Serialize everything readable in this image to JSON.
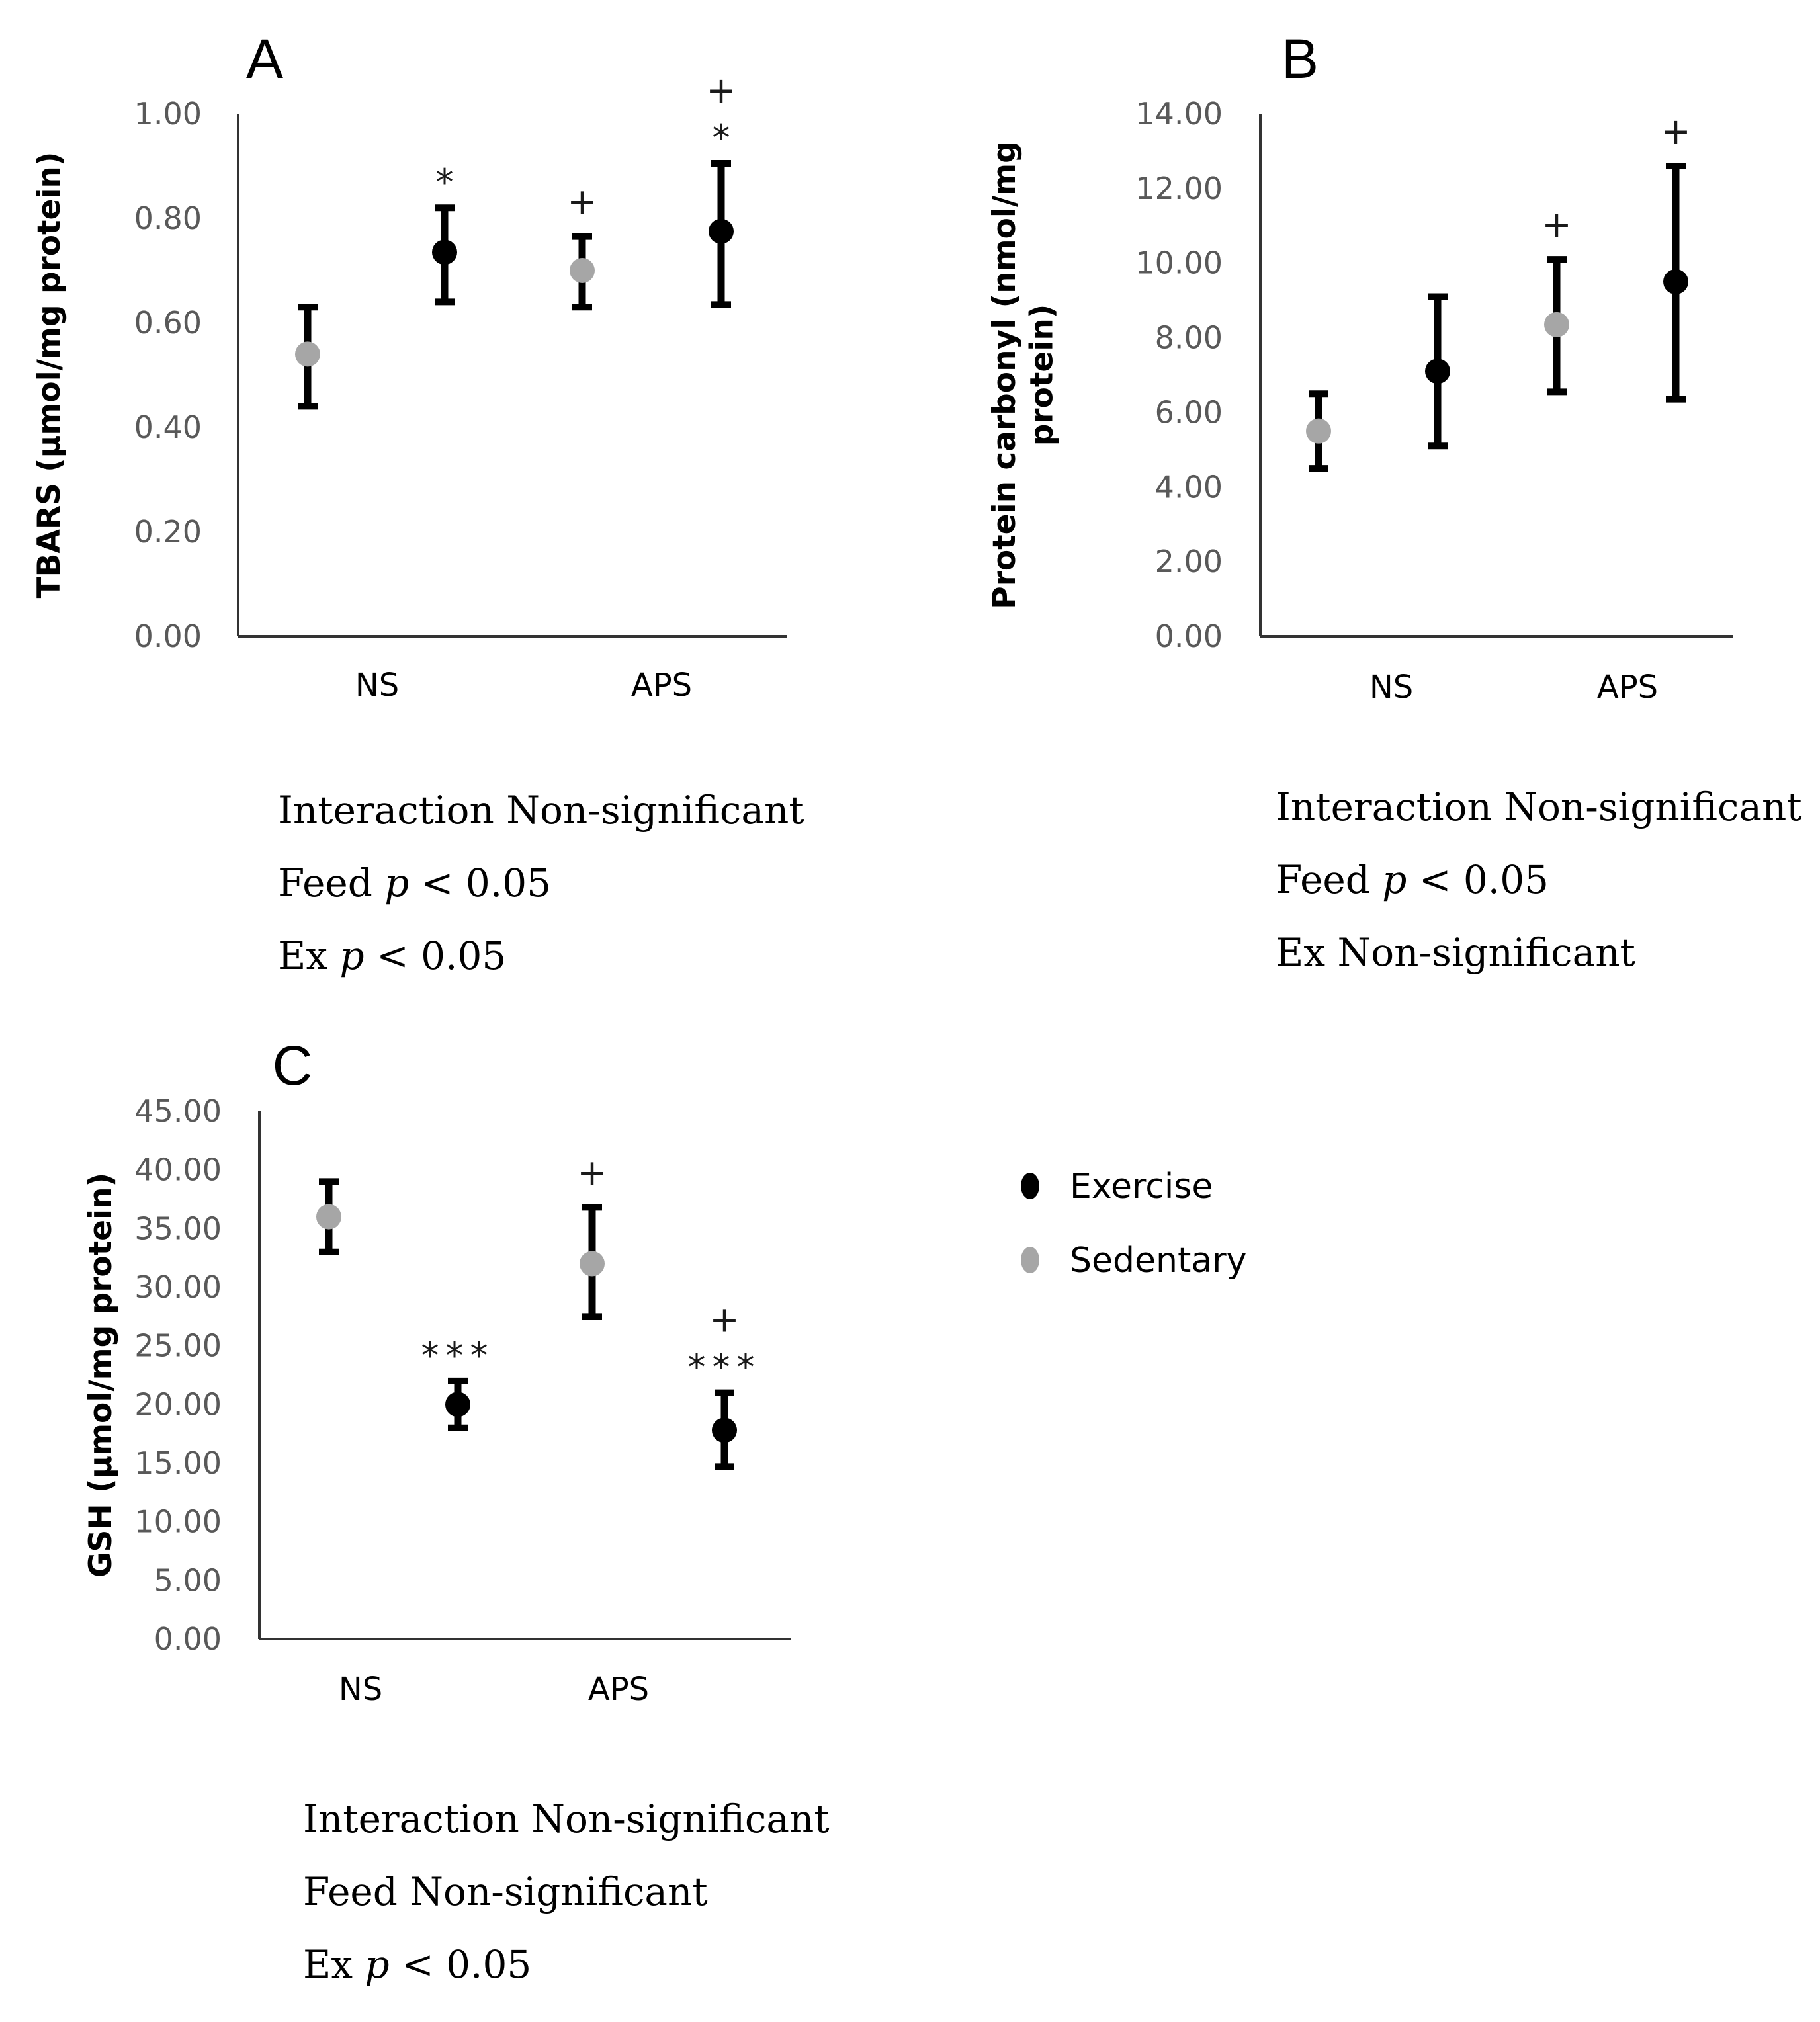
{
  "legend": [
    {
      "label": "Exercise",
      "color": "#000000"
    },
    {
      "label": "Sedentary",
      "color": "#a6a6a6"
    }
  ],
  "chart_data": [
    {
      "type": "scatter",
      "panel": "A",
      "ylabel": "TBARS (µmol/mg protein)",
      "ylim": [
        0,
        1
      ],
      "yticks": [
        0,
        0.2,
        0.4,
        0.6,
        0.8,
        1.0
      ],
      "ytick_labels": [
        "0.00",
        "0.20",
        "0.40",
        "0.60",
        "0.80",
        "1.00"
      ],
      "categories": [
        "NS",
        "APS"
      ],
      "series": [
        {
          "name": "Sedentary",
          "values": [
            0.54,
            0.7
          ],
          "err_low": [
            0.44,
            0.63
          ],
          "err_high": [
            0.63,
            0.765
          ],
          "marks": [
            "",
            "+"
          ]
        },
        {
          "name": "Exercise",
          "values": [
            0.735,
            0.775
          ],
          "err_low": [
            0.64,
            0.635
          ],
          "err_high": [
            0.82,
            0.905
          ],
          "marks": [
            "*",
            "+\n*"
          ]
        }
      ],
      "stats": [
        [
          "Interaction Non-significant"
        ],
        [
          "Feed ",
          "p",
          " < 0.05"
        ],
        [
          "Ex ",
          "p",
          " < 0.05"
        ]
      ]
    },
    {
      "type": "scatter",
      "panel": "B",
      "ylabel": "Protein carbonyl (nmol/mg protein)",
      "ylim": [
        0,
        14
      ],
      "yticks": [
        0,
        2,
        4,
        6,
        8,
        10,
        12,
        14
      ],
      "ytick_labels": [
        "0.00",
        "2.00",
        "4.00",
        "6.00",
        "8.00",
        "10.00",
        "12.00",
        "14.00"
      ],
      "categories": [
        "NS",
        "APS"
      ],
      "series": [
        {
          "name": "Sedentary",
          "values": [
            5.5,
            8.35
          ],
          "err_low": [
            4.5,
            6.55
          ],
          "err_high": [
            6.5,
            10.1
          ],
          "marks": [
            "",
            "+"
          ]
        },
        {
          "name": "Exercise",
          "values": [
            7.1,
            9.5
          ],
          "err_low": [
            5.1,
            6.35
          ],
          "err_high": [
            9.1,
            12.6
          ],
          "marks": [
            "",
            "+"
          ]
        }
      ],
      "stats": [
        [
          "Interaction Non-significant"
        ],
        [
          "Feed ",
          "p",
          " < 0.05"
        ],
        [
          "Ex Non-significant"
        ]
      ]
    },
    {
      "type": "scatter",
      "panel": "C",
      "ylabel": "GSH (µmol/mg protein)",
      "ylim": [
        0,
        45
      ],
      "yticks": [
        0,
        5,
        10,
        15,
        20,
        25,
        30,
        35,
        40,
        45
      ],
      "ytick_labels": [
        "0.00",
        "5.00",
        "10.00",
        "15.00",
        "20.00",
        "25.00",
        "30.00",
        "35.00",
        "40.00",
        "45.00"
      ],
      "categories": [
        "NS",
        "APS"
      ],
      "series": [
        {
          "name": "Sedentary",
          "values": [
            36,
            32
          ],
          "err_low": [
            33,
            27.5
          ],
          "err_high": [
            39,
            36.8
          ],
          "marks": [
            "",
            "+"
          ]
        },
        {
          "name": "Exercise",
          "values": [
            20,
            17.8
          ],
          "err_low": [
            18,
            14.7
          ],
          "err_high": [
            22,
            21
          ],
          "marks": [
            "***",
            "+\n***"
          ]
        }
      ],
      "stats": [
        [
          "Interaction Non-significant"
        ],
        [
          "Feed Non-significant"
        ],
        [
          "Ex ",
          "p",
          " < 0.05"
        ]
      ]
    }
  ]
}
